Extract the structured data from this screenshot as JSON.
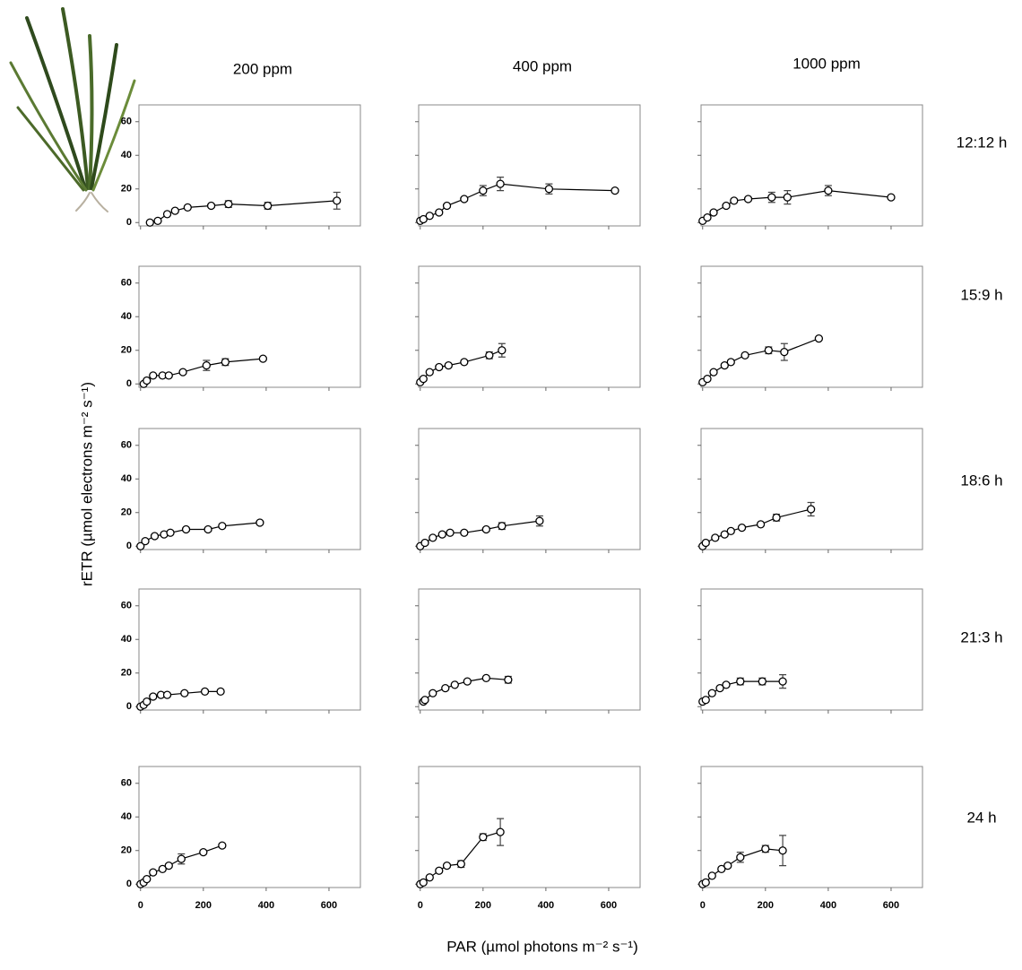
{
  "column_labels": [
    "200 ppm",
    "400 ppm",
    "1000 ppm"
  ],
  "row_labels": [
    "12:12 h",
    "15:9 h",
    "18:6 h",
    "21:3 h",
    "24 h"
  ],
  "y_label": "rETR (µmol electrons m⁻² s⁻¹)",
  "x_label": "PAR (µmol photons m⁻²  s⁻¹)",
  "chart_data": [
    {
      "type": "line",
      "color": "#000000",
      "x": [
        30,
        55,
        85,
        110,
        150,
        225,
        280,
        405,
        625
      ],
      "values": [
        0,
        1,
        5,
        7,
        9,
        10,
        11,
        10,
        13
      ],
      "errors": [
        0,
        0,
        0,
        0,
        0,
        1,
        2,
        2,
        5
      ],
      "xlim": [
        -5,
        700
      ],
      "ylim": [
        -2,
        70
      ],
      "xticks": [
        0,
        200,
        400,
        600
      ],
      "yticks": [
        0,
        20,
        40,
        60
      ],
      "show_xticklabels": false,
      "show_yticklabels": true
    },
    {
      "type": "line",
      "color": "#000000",
      "x": [
        0,
        10,
        30,
        60,
        85,
        140,
        200,
        255,
        410,
        620
      ],
      "values": [
        1,
        2,
        4,
        6,
        10,
        14,
        19,
        23,
        20,
        19
      ],
      "errors": [
        0,
        0,
        0,
        0,
        1,
        1,
        3,
        4,
        3,
        0
      ],
      "xlim": [
        -5,
        700
      ],
      "ylim": [
        -2,
        70
      ],
      "xticks": [
        0,
        200,
        400,
        600
      ],
      "yticks": [
        0,
        20,
        40,
        60
      ],
      "show_xticklabels": false,
      "show_yticklabels": false
    },
    {
      "type": "line",
      "color": "#000000",
      "x": [
        0,
        15,
        35,
        75,
        100,
        145,
        220,
        270,
        400,
        600
      ],
      "values": [
        1,
        3,
        6,
        10,
        13,
        14,
        15,
        15,
        19,
        15
      ],
      "errors": [
        0,
        0,
        0,
        1,
        1,
        1,
        3,
        4,
        3,
        0
      ],
      "xlim": [
        -5,
        700
      ],
      "ylim": [
        -2,
        70
      ],
      "xticks": [
        0,
        200,
        400,
        600
      ],
      "yticks": [
        0,
        20,
        40,
        60
      ],
      "show_xticklabels": false,
      "show_yticklabels": false
    },
    {
      "type": "line",
      "color": "#000000",
      "x": [
        10,
        20,
        40,
        70,
        90,
        135,
        210,
        270,
        390
      ],
      "values": [
        0,
        2,
        5,
        5,
        5,
        7,
        11,
        13,
        15
      ],
      "errors": [
        0,
        0,
        0,
        1,
        1,
        1,
        3,
        2,
        0
      ],
      "xlim": [
        -5,
        700
      ],
      "ylim": [
        -2,
        70
      ],
      "xticks": [
        0,
        200,
        400,
        600
      ],
      "yticks": [
        0,
        20,
        40,
        60
      ],
      "show_xticklabels": false,
      "show_yticklabels": true
    },
    {
      "type": "line",
      "color": "#000000",
      "x": [
        0,
        10,
        30,
        60,
        90,
        140,
        220,
        260
      ],
      "values": [
        1,
        3,
        7,
        10,
        11,
        13,
        17,
        20
      ],
      "errors": [
        0,
        0,
        0,
        1,
        1,
        1,
        2,
        4
      ],
      "xlim": [
        -5,
        700
      ],
      "ylim": [
        -2,
        70
      ],
      "xticks": [
        0,
        200,
        400,
        600
      ],
      "yticks": [
        0,
        20,
        40,
        60
      ],
      "show_xticklabels": false,
      "show_yticklabels": false
    },
    {
      "type": "line",
      "color": "#000000",
      "x": [
        0,
        15,
        35,
        70,
        90,
        135,
        210,
        260,
        370
      ],
      "values": [
        1,
        3,
        7,
        11,
        13,
        17,
        20,
        19,
        27
      ],
      "errors": [
        0,
        0,
        0,
        1,
        1,
        1,
        2,
        5,
        0
      ],
      "xlim": [
        -5,
        700
      ],
      "ylim": [
        -2,
        70
      ],
      "xticks": [
        0,
        200,
        400,
        600
      ],
      "yticks": [
        0,
        20,
        40,
        60
      ],
      "show_xticklabels": false,
      "show_yticklabels": false
    },
    {
      "type": "line",
      "color": "#000000",
      "x": [
        0,
        15,
        45,
        75,
        95,
        145,
        215,
        260,
        380
      ],
      "values": [
        0,
        3,
        6,
        7,
        8,
        10,
        10,
        12,
        14
      ],
      "errors": [
        0,
        0,
        0,
        1,
        1,
        1,
        1,
        1,
        1
      ],
      "xlim": [
        -5,
        700
      ],
      "ylim": [
        -2,
        70
      ],
      "xticks": [
        0,
        200,
        400,
        600
      ],
      "yticks": [
        0,
        20,
        40,
        60
      ],
      "show_xticklabels": false,
      "show_yticklabels": true
    },
    {
      "type": "line",
      "color": "#000000",
      "x": [
        0,
        15,
        40,
        70,
        95,
        140,
        210,
        260,
        380
      ],
      "values": [
        0,
        2,
        5,
        7,
        8,
        8,
        10,
        12,
        15
      ],
      "errors": [
        0,
        0,
        0,
        1,
        1,
        1,
        1,
        2,
        3
      ],
      "xlim": [
        -5,
        700
      ],
      "ylim": [
        -2,
        70
      ],
      "xticks": [
        0,
        200,
        400,
        600
      ],
      "yticks": [
        0,
        20,
        40,
        60
      ],
      "show_xticklabels": false,
      "show_yticklabels": false
    },
    {
      "type": "line",
      "color": "#000000",
      "x": [
        0,
        10,
        40,
        70,
        90,
        125,
        185,
        235,
        345
      ],
      "values": [
        0,
        2,
        5,
        7,
        9,
        11,
        13,
        17,
        22
      ],
      "errors": [
        0,
        0,
        1,
        1,
        1,
        1,
        1,
        2,
        4
      ],
      "xlim": [
        -5,
        700
      ],
      "ylim": [
        -2,
        70
      ],
      "xticks": [
        0,
        200,
        400,
        600
      ],
      "yticks": [
        0,
        20,
        40,
        60
      ],
      "show_xticklabels": false,
      "show_yticklabels": false
    },
    {
      "type": "line",
      "color": "#000000",
      "x": [
        0,
        10,
        20,
        40,
        65,
        85,
        140,
        205,
        255
      ],
      "values": [
        0,
        1,
        3,
        6,
        7,
        7,
        8,
        9,
        9
      ],
      "errors": [
        0,
        0,
        0,
        1,
        1,
        1,
        1,
        1,
        1
      ],
      "xlim": [
        -5,
        700
      ],
      "ylim": [
        -2,
        70
      ],
      "xticks": [
        0,
        200,
        400,
        600
      ],
      "yticks": [
        0,
        20,
        40,
        60
      ],
      "show_xticklabels": false,
      "show_yticklabels": true
    },
    {
      "type": "line",
      "color": "#000000",
      "x": [
        10,
        15,
        40,
        80,
        110,
        150,
        210,
        280
      ],
      "values": [
        3,
        4,
        8,
        11,
        13,
        15,
        17,
        16
      ],
      "errors": [
        0,
        0,
        0,
        0,
        0,
        0,
        0,
        2
      ],
      "xlim": [
        -5,
        700
      ],
      "ylim": [
        -2,
        70
      ],
      "xticks": [
        0,
        200,
        400,
        600
      ],
      "yticks": [
        0,
        20,
        40,
        60
      ],
      "show_xticklabels": false,
      "show_yticklabels": false
    },
    {
      "type": "line",
      "color": "#000000",
      "x": [
        0,
        10,
        30,
        55,
        75,
        120,
        190,
        255
      ],
      "values": [
        3,
        4,
        8,
        11,
        13,
        15,
        15,
        15
      ],
      "errors": [
        0,
        0,
        0,
        1,
        1,
        2,
        2,
        4
      ],
      "xlim": [
        -5,
        700
      ],
      "ylim": [
        -2,
        70
      ],
      "xticks": [
        0,
        200,
        400,
        600
      ],
      "yticks": [
        0,
        20,
        40,
        60
      ],
      "show_xticklabels": false,
      "show_yticklabels": false
    },
    {
      "type": "line",
      "color": "#000000",
      "x": [
        0,
        10,
        20,
        40,
        70,
        90,
        130,
        200,
        260
      ],
      "values": [
        0,
        1,
        3,
        7,
        9,
        11,
        15,
        19,
        23
      ],
      "errors": [
        0,
        0,
        0,
        1,
        1,
        1,
        3,
        1,
        1
      ],
      "xlim": [
        -5,
        700
      ],
      "ylim": [
        -2,
        70
      ],
      "xticks": [
        0,
        200,
        400,
        600
      ],
      "yticks": [
        0,
        20,
        40,
        60
      ],
      "show_xticklabels": true,
      "show_yticklabels": true
    },
    {
      "type": "line",
      "color": "#000000",
      "x": [
        0,
        10,
        30,
        60,
        85,
        130,
        200,
        255
      ],
      "values": [
        0,
        1,
        4,
        8,
        11,
        12,
        28,
        31
      ],
      "errors": [
        0,
        0,
        0,
        1,
        1,
        2,
        2,
        8
      ],
      "xlim": [
        -5,
        700
      ],
      "ylim": [
        -2,
        70
      ],
      "xticks": [
        0,
        200,
        400,
        600
      ],
      "yticks": [
        0,
        20,
        40,
        60
      ],
      "show_xticklabels": true,
      "show_yticklabels": false
    },
    {
      "type": "line",
      "color": "#000000",
      "x": [
        0,
        10,
        30,
        60,
        80,
        120,
        200,
        255
      ],
      "values": [
        0,
        1,
        5,
        9,
        11,
        16,
        21,
        20
      ],
      "errors": [
        0,
        0,
        0,
        1,
        1,
        3,
        2,
        9
      ],
      "xlim": [
        -5,
        700
      ],
      "ylim": [
        -2,
        70
      ],
      "xticks": [
        0,
        200,
        400,
        600
      ],
      "yticks": [
        0,
        20,
        40,
        60
      ],
      "show_xticklabels": true,
      "show_yticklabels": false
    }
  ]
}
